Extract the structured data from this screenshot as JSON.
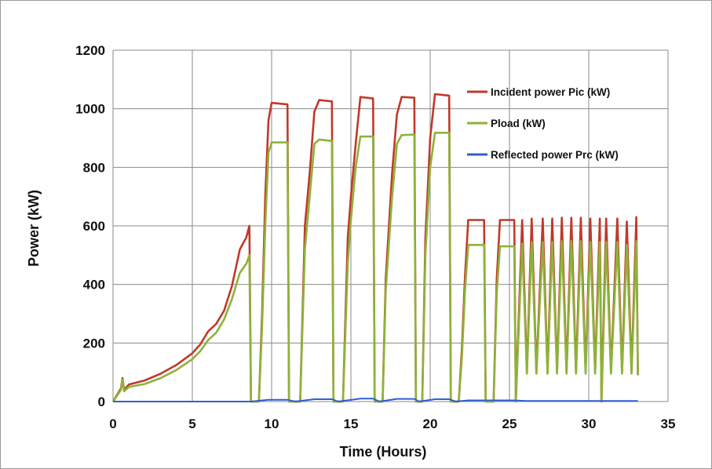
{
  "chart_data": {
    "type": "line",
    "title": "",
    "xlabel": "Time (Hours)",
    "ylabel": "Power (kW)",
    "xlim": [
      0,
      35
    ],
    "ylim": [
      0,
      1200
    ],
    "xticks": [
      "0",
      "5",
      "10",
      "15",
      "20",
      "25",
      "30",
      "35"
    ],
    "yticks": [
      "0",
      "200",
      "400",
      "600",
      "800",
      "1000",
      "1200"
    ],
    "grid": true,
    "legend_position": "top-right",
    "series": [
      {
        "name": "Incident power Pic (kW)",
        "color": "#c0392b",
        "points": [
          [
            0,
            0
          ],
          [
            0.5,
            45
          ],
          [
            0.6,
            80
          ],
          [
            0.7,
            40
          ],
          [
            1,
            58
          ],
          [
            2,
            72
          ],
          [
            3,
            95
          ],
          [
            4,
            125
          ],
          [
            5,
            165
          ],
          [
            5.5,
            195
          ],
          [
            6,
            240
          ],
          [
            6.5,
            265
          ],
          [
            7,
            310
          ],
          [
            7.5,
            395
          ],
          [
            8,
            520
          ],
          [
            8.4,
            560
          ],
          [
            8.6,
            600
          ],
          [
            8.7,
            0
          ],
          [
            9.2,
            0
          ],
          [
            9.4,
            300
          ],
          [
            9.6,
            700
          ],
          [
            9.8,
            960
          ],
          [
            10,
            1020
          ],
          [
            11,
            1015
          ],
          [
            11.1,
            0
          ],
          [
            11.8,
            0
          ],
          [
            12,
            400
          ],
          [
            12.1,
            600
          ],
          [
            12.4,
            780
          ],
          [
            12.7,
            990
          ],
          [
            13,
            1030
          ],
          [
            13.8,
            1025
          ],
          [
            13.9,
            0
          ],
          [
            14.5,
            0
          ],
          [
            14.8,
            560
          ],
          [
            15,
            700
          ],
          [
            15.3,
            880
          ],
          [
            15.6,
            1040
          ],
          [
            16.4,
            1035
          ],
          [
            16.5,
            0
          ],
          [
            17,
            0
          ],
          [
            17.2,
            420
          ],
          [
            17.6,
            780
          ],
          [
            17.9,
            980
          ],
          [
            18.2,
            1040
          ],
          [
            19,
            1038
          ],
          [
            19.1,
            0
          ],
          [
            19.5,
            0
          ],
          [
            19.7,
            560
          ],
          [
            20,
            900
          ],
          [
            20.3,
            1050
          ],
          [
            21.2,
            1045
          ],
          [
            21.3,
            0
          ],
          [
            21.8,
            0
          ],
          [
            22,
            180
          ],
          [
            22.2,
            430
          ],
          [
            22.4,
            620
          ],
          [
            23.4,
            620
          ],
          [
            23.5,
            0
          ],
          [
            24,
            0
          ],
          [
            24.2,
            420
          ],
          [
            24.4,
            620
          ],
          [
            25.3,
            620
          ],
          [
            25.4,
            0
          ],
          [
            25.8,
            620
          ],
          [
            26.1,
            100
          ],
          [
            26.4,
            625
          ],
          [
            26.7,
            100
          ],
          [
            27.1,
            625
          ],
          [
            27.4,
            100
          ],
          [
            27.7,
            625
          ],
          [
            28,
            100
          ],
          [
            28.3,
            628
          ],
          [
            28.6,
            100
          ],
          [
            28.9,
            628
          ],
          [
            29.2,
            100
          ],
          [
            29.5,
            628
          ],
          [
            29.8,
            100
          ],
          [
            30.1,
            625
          ],
          [
            30.4,
            100
          ],
          [
            30.7,
            625
          ],
          [
            30.8,
            0
          ],
          [
            31.1,
            625
          ],
          [
            31.4,
            100
          ],
          [
            31.8,
            625
          ],
          [
            32.1,
            100
          ],
          [
            32.4,
            615
          ],
          [
            32.7,
            100
          ],
          [
            33,
            630
          ],
          [
            33.1,
            90
          ]
        ]
      },
      {
        "name": "Pload (kW)",
        "color": "#8db33a",
        "points": [
          [
            0,
            0
          ],
          [
            0.5,
            40
          ],
          [
            0.6,
            75
          ],
          [
            0.7,
            35
          ],
          [
            1,
            50
          ],
          [
            2,
            60
          ],
          [
            3,
            80
          ],
          [
            4,
            108
          ],
          [
            5,
            145
          ],
          [
            5.5,
            172
          ],
          [
            6,
            210
          ],
          [
            6.5,
            235
          ],
          [
            7,
            280
          ],
          [
            7.5,
            350
          ],
          [
            8,
            440
          ],
          [
            8.4,
            470
          ],
          [
            8.6,
            500
          ],
          [
            8.7,
            0
          ],
          [
            9.2,
            0
          ],
          [
            9.4,
            260
          ],
          [
            9.6,
            600
          ],
          [
            9.8,
            850
          ],
          [
            10,
            885
          ],
          [
            11,
            885
          ],
          [
            11.1,
            0
          ],
          [
            11.8,
            0
          ],
          [
            12,
            350
          ],
          [
            12.1,
            520
          ],
          [
            12.4,
            700
          ],
          [
            12.7,
            880
          ],
          [
            13,
            895
          ],
          [
            13.8,
            890
          ],
          [
            13.9,
            0
          ],
          [
            14.5,
            0
          ],
          [
            14.8,
            470
          ],
          [
            15,
            620
          ],
          [
            15.3,
            800
          ],
          [
            15.6,
            905
          ],
          [
            16.4,
            905
          ],
          [
            16.5,
            0
          ],
          [
            17,
            0
          ],
          [
            17.2,
            380
          ],
          [
            17.6,
            700
          ],
          [
            17.9,
            880
          ],
          [
            18.2,
            910
          ],
          [
            19,
            912
          ],
          [
            19.1,
            0
          ],
          [
            19.5,
            0
          ],
          [
            19.7,
            500
          ],
          [
            20,
            800
          ],
          [
            20.3,
            918
          ],
          [
            21.2,
            918
          ],
          [
            21.3,
            0
          ],
          [
            21.8,
            0
          ],
          [
            22,
            150
          ],
          [
            22.2,
            380
          ],
          [
            22.4,
            535
          ],
          [
            23.4,
            535
          ],
          [
            23.5,
            0
          ],
          [
            24,
            0
          ],
          [
            24.2,
            370
          ],
          [
            24.4,
            530
          ],
          [
            25.3,
            530
          ],
          [
            25.4,
            0
          ],
          [
            25.8,
            540
          ],
          [
            26.1,
            95
          ],
          [
            26.4,
            545
          ],
          [
            26.7,
            95
          ],
          [
            27.1,
            545
          ],
          [
            27.4,
            95
          ],
          [
            27.7,
            545
          ],
          [
            28,
            95
          ],
          [
            28.3,
            548
          ],
          [
            28.6,
            95
          ],
          [
            28.9,
            548
          ],
          [
            29.2,
            95
          ],
          [
            29.5,
            548
          ],
          [
            29.8,
            95
          ],
          [
            30.1,
            545
          ],
          [
            30.4,
            95
          ],
          [
            30.7,
            545
          ],
          [
            30.8,
            0
          ],
          [
            31.1,
            545
          ],
          [
            31.4,
            95
          ],
          [
            31.8,
            545
          ],
          [
            32.1,
            95
          ],
          [
            32.4,
            535
          ],
          [
            32.7,
            95
          ],
          [
            33,
            548
          ],
          [
            33.1,
            90
          ]
        ]
      },
      {
        "name": "Reflected power Prc (kW)",
        "color": "#2e5fd0",
        "points": [
          [
            0,
            0
          ],
          [
            8.7,
            0
          ],
          [
            9.8,
            6
          ],
          [
            11,
            6
          ],
          [
            11.5,
            0
          ],
          [
            12.7,
            8
          ],
          [
            13.8,
            8
          ],
          [
            14.2,
            0
          ],
          [
            15.6,
            10
          ],
          [
            16.4,
            10
          ],
          [
            16.8,
            0
          ],
          [
            17.9,
            9
          ],
          [
            19,
            9
          ],
          [
            19.3,
            0
          ],
          [
            20.3,
            8
          ],
          [
            21.2,
            8
          ],
          [
            21.6,
            0
          ],
          [
            22.4,
            4
          ],
          [
            23.4,
            4
          ],
          [
            24.4,
            4
          ],
          [
            25.3,
            4
          ],
          [
            26,
            2
          ],
          [
            33.1,
            2
          ]
        ]
      }
    ]
  }
}
